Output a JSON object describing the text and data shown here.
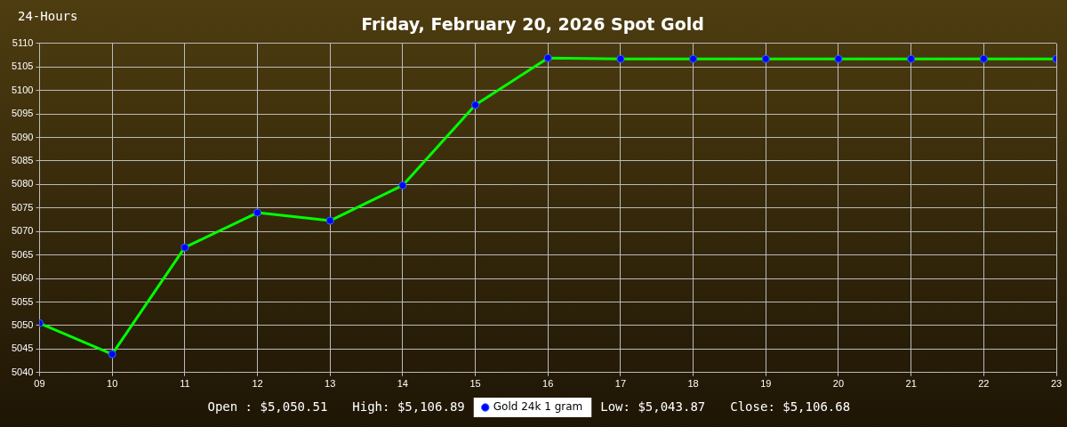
{
  "chart_data": {
    "type": "line",
    "title": "Friday, February 20, 2026 Spot Gold",
    "annotations": [
      "24-Hours",
      "Open : $5,050.51",
      "High: $5,106.89",
      "Low: $5,043.87",
      "Close: $5,106.68"
    ],
    "x": [
      9,
      10,
      11,
      12,
      13,
      14,
      15,
      16,
      17,
      18,
      19,
      20,
      21,
      22,
      23
    ],
    "series": [
      {
        "name": "Gold 24k 1 gram",
        "color": "#00ff00",
        "values": [
          5050.5,
          5043.9,
          5066.6,
          5074.0,
          5072.3,
          5079.8,
          5096.9,
          5106.9,
          5106.7,
          5106.7,
          5106.7,
          5106.7,
          5106.7,
          5106.7,
          5106.7
        ]
      }
    ],
    "xlim": [
      9,
      23
    ],
    "xticks": [
      {
        "value": 9,
        "label": "09"
      },
      10,
      11,
      12,
      13,
      14,
      15,
      16,
      17,
      18,
      19,
      20,
      21,
      22,
      23
    ],
    "ylim": [
      5040,
      5110
    ],
    "yticks": [
      5040,
      5045,
      5050,
      5055,
      5060,
      5065,
      5070,
      5075,
      5080,
      5085,
      5090,
      5095,
      5100,
      5105,
      5110
    ],
    "grid": true,
    "legend": "bottom",
    "marker": "circle",
    "line_style": "solid"
  }
}
